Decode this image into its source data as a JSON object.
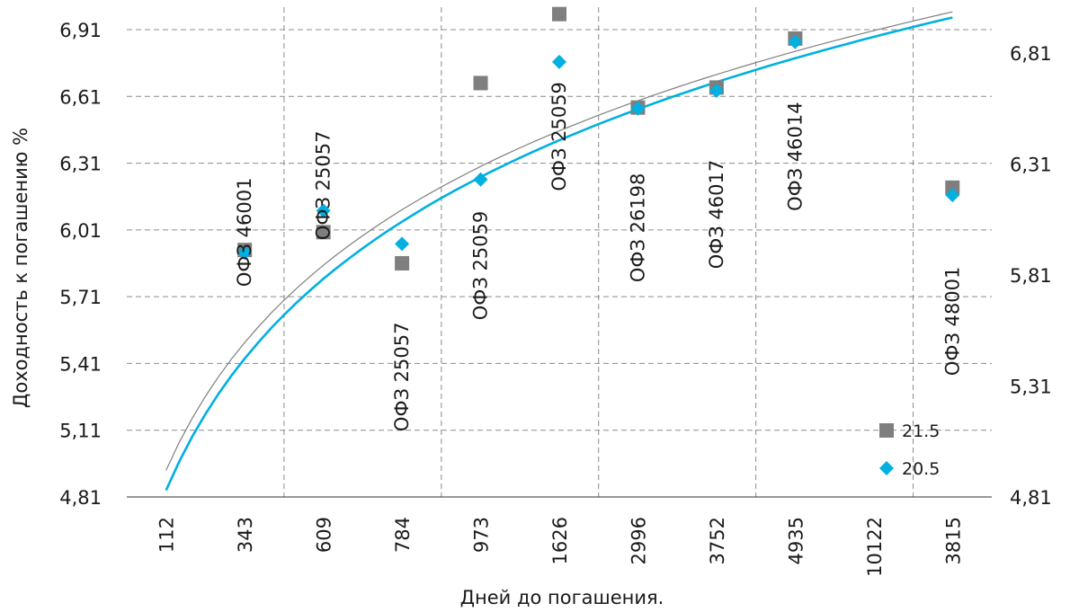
{
  "chart_data": {
    "type": "scatter",
    "title": "",
    "xlabel": "Дней до погашения.",
    "ylabel": "Доходность к погашению %",
    "categories": [
      "112",
      "343",
      "609",
      "784",
      "973",
      "1626",
      "2996",
      "3752",
      "4935",
      "10122",
      "3815"
    ],
    "y_left": {
      "ticks": [
        "4,81",
        "5,11",
        "5,41",
        "5,71",
        "6,01",
        "6,31",
        "6,61",
        "6,91"
      ],
      "ylim": [
        4.81,
        6.91
      ]
    },
    "y_right": {
      "ticks": [
        "4,81",
        "5,31",
        "5,81",
        "6,31",
        "6,81"
      ],
      "ylim": [
        4.81,
        6.81
      ]
    },
    "grid": true,
    "legend": "bottom-right",
    "series": [
      {
        "name": "21.5",
        "axis": "left",
        "marker": "square",
        "color": "#7f7f7f",
        "points": [
          {
            "category": "343",
            "y": 5.92
          },
          {
            "category": "609",
            "y": 6.0
          },
          {
            "category": "784",
            "y": 5.86
          },
          {
            "category": "973",
            "y": 6.67
          },
          {
            "category": "1626",
            "y": 6.98
          },
          {
            "category": "2996",
            "y": 6.56
          },
          {
            "category": "3752",
            "y": 6.65
          },
          {
            "category": "4935",
            "y": 6.87
          },
          {
            "category": "3815",
            "y": 6.2
          }
        ]
      },
      {
        "name": "20.5",
        "axis": "right",
        "marker": "diamond",
        "color": "#00b0e0",
        "points": [
          {
            "category": "343",
            "y": 5.91
          },
          {
            "category": "609",
            "y": 6.1
          },
          {
            "category": "784",
            "y": 5.95
          },
          {
            "category": "973",
            "y": 6.24
          },
          {
            "category": "1626",
            "y": 6.77
          },
          {
            "category": "2996",
            "y": 6.56
          },
          {
            "category": "3752",
            "y": 6.64
          },
          {
            "category": "4935",
            "y": 6.86
          },
          {
            "category": "3815",
            "y": 6.17
          }
        ]
      }
    ],
    "trendlines": [
      {
        "series": "21.5",
        "type": "logarithmic",
        "color": "#7f7f7f",
        "start": {
          "category": "112",
          "y": 4.93
        },
        "end": {
          "category": "3815",
          "y": 6.99
        }
      },
      {
        "series": "20.5",
        "type": "logarithmic",
        "color": "#00b0e0",
        "start": {
          "category": "112",
          "y": 4.84
        },
        "end": {
          "category": "3815",
          "y": 6.97
        }
      }
    ],
    "annotations": [
      {
        "text": "ОФЗ 46001",
        "category": "343",
        "y": 6.0
      },
      {
        "text": "ОФЗ 25057",
        "category": "609",
        "y": 6.21
      },
      {
        "text": "ОФЗ 25057",
        "category": "784",
        "y": 5.35
      },
      {
        "text": "ОФЗ 25059",
        "category": "973",
        "y": 5.85
      },
      {
        "text": "ОФЗ 25059",
        "category": "1626",
        "y": 6.43
      },
      {
        "text": "ОФЗ 26198",
        "category": "2996",
        "y": 6.02
      },
      {
        "text": "ОФЗ 46017",
        "category": "3752",
        "y": 6.08
      },
      {
        "text": "ОФЗ 46014",
        "category": "4935",
        "y": 6.34
      },
      {
        "text": "ОФЗ 48001",
        "category": "3815",
        "y": 5.6
      }
    ]
  }
}
